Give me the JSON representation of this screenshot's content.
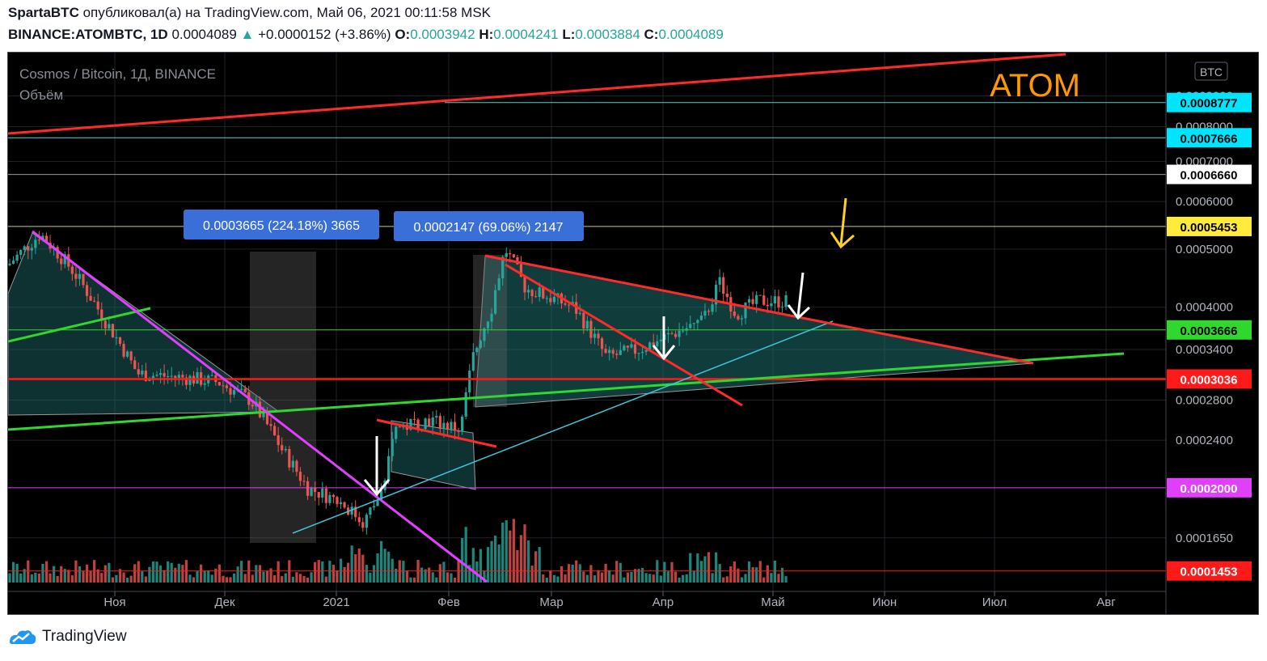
{
  "header": {
    "author": "SpartaBTC",
    "published_text": "опубликовал(а) на TradingView.com, Май 06, 2021 00:11:58 MSK",
    "symbol": "BINANCE:ATOMBTC, 1D",
    "last": "0.0004089",
    "change": "+0.0000152 (+3.86%)",
    "o_label": "O:",
    "o": "0.0003942",
    "h_label": "H:",
    "h": "0.0004241",
    "l_label": "L:",
    "l": "0.0003884",
    "c_label": "C:",
    "c": "0.0004089"
  },
  "legend": {
    "title": "Cosmos / Bitcoin, 1Д, BINANCE",
    "volume": "Объём",
    "asset_label": "ATOM"
  },
  "currency_button": "BTC",
  "colors": {
    "up": "#26a69a",
    "down": "#ef5350",
    "red_line": "#ff2a2a",
    "green_line": "#2fd72f",
    "magenta": "#e040fb",
    "cyan": "#40c4d8",
    "yellow": "#ffd21f",
    "accent_orange": "#ff9800",
    "info_box": "#3a6fd8"
  },
  "footer": {
    "brand": "TradingView"
  },
  "chart_data": {
    "type": "candlestick",
    "title": "Cosmos / Bitcoin, 1Д, BINANCE",
    "y_scale": "log",
    "ylim": [
      0.000136,
      0.00105
    ],
    "x_ticks": [
      "Ноя",
      "Дек",
      "2021",
      "Фев",
      "Мар",
      "Апр",
      "Май",
      "Июн",
      "Июл",
      "Авг"
    ],
    "y_ticks": [
      "0.0009000",
      "0.0008000",
      "0.0007000",
      "0.0006000",
      "0.0005000",
      "0.0004000",
      "0.0003400",
      "0.0002800",
      "0.0002400",
      "0.0001650"
    ],
    "price_levels": [
      {
        "value": "0.0008777",
        "color": "#00e5ff"
      },
      {
        "value": "0.0007666",
        "color": "#00e5ff"
      },
      {
        "value": "0.0006660",
        "color": "#ffffff"
      },
      {
        "value": "0.0005453",
        "color": "#ffeb3b"
      },
      {
        "value": "0.0003666",
        "color": "#2fd72f"
      },
      {
        "value": "0.0003036",
        "color": "#ff1a1a"
      },
      {
        "value": "0.0002000",
        "color": "#e040fb"
      },
      {
        "value": "0.0001453",
        "color": "#ff1a1a"
      }
    ],
    "measurements": [
      {
        "text": "0.0003665 (224.18%) 3665"
      },
      {
        "text": "0.0002147 (69.06%) 2147"
      }
    ],
    "last_price": 0.0004089
  }
}
